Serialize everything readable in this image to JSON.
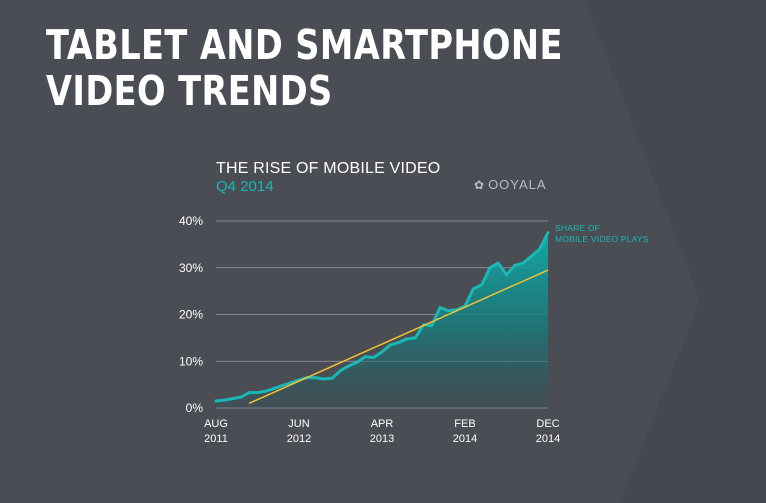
{
  "headline": {
    "line1": "TABLET AND SMARTPHONE",
    "line2": "VIDEO TRENDS"
  },
  "brand": {
    "logo_text": "OOYALA",
    "logo_icon": "ooyala-dots-icon"
  },
  "colors": {
    "background": "#4a4d53",
    "series": "#19b8b5",
    "trend": "#f2c230",
    "grid": "#9a9da2"
  },
  "chart_data": {
    "type": "area",
    "title": "THE RISE OF MOBILE VIDEO",
    "subtitle": "Q4 2014",
    "xlabel": "",
    "ylabel": "",
    "ylim": [
      0,
      40
    ],
    "yticks": [
      "0%",
      "10%",
      "20%",
      "30%",
      "40%"
    ],
    "xticks": [
      {
        "line1": "AUG",
        "line2": "2011"
      },
      {
        "line1": "JUN",
        "line2": "2012"
      },
      {
        "line1": "APR",
        "line2": "2013"
      },
      {
        "line1": "FEB",
        "line2": "2014"
      },
      {
        "line1": "DEC",
        "line2": "2014"
      }
    ],
    "grid": true,
    "x_range": [
      "2011-08",
      "2014-12"
    ],
    "series": [
      {
        "name": "SHARE OF MOBILE VIDEO PLAYS",
        "label_line1": "SHARE OF",
        "label_line2": "MOBILE VIDEO PLAYS",
        "x": [
          "2011-08",
          "2011-09",
          "2011-10",
          "2011-11",
          "2011-12",
          "2012-01",
          "2012-02",
          "2012-03",
          "2012-04",
          "2012-05",
          "2012-06",
          "2012-07",
          "2012-08",
          "2012-09",
          "2012-10",
          "2012-11",
          "2012-12",
          "2013-01",
          "2013-02",
          "2013-03",
          "2013-04",
          "2013-05",
          "2013-06",
          "2013-07",
          "2013-08",
          "2013-09",
          "2013-10",
          "2013-11",
          "2013-12",
          "2014-01",
          "2014-02",
          "2014-03",
          "2014-04",
          "2014-05",
          "2014-06",
          "2014-07",
          "2014-08",
          "2014-09",
          "2014-10",
          "2014-11",
          "2014-12"
        ],
        "values": [
          1.5,
          1.7,
          2.0,
          2.3,
          3.3,
          3.3,
          3.6,
          4.2,
          4.8,
          5.4,
          6.0,
          6.5,
          6.5,
          6.2,
          6.4,
          8.0,
          9.0,
          9.8,
          11.0,
          10.8,
          12.0,
          13.5,
          14.0,
          14.8,
          15.0,
          17.8,
          17.6,
          21.5,
          20.8,
          21.0,
          21.8,
          25.5,
          26.3,
          30.0,
          31.0,
          28.5,
          30.5,
          31.0,
          32.5,
          34.0,
          37.5
        ]
      },
      {
        "name": "trend",
        "x": [
          "2011-12",
          "2014-12"
        ],
        "values": [
          1.0,
          29.5
        ]
      }
    ]
  }
}
